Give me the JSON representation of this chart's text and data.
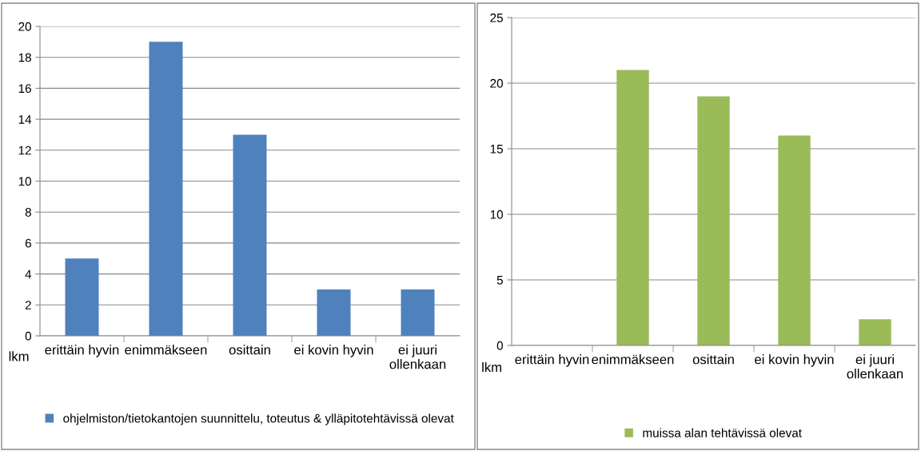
{
  "chart_data": [
    {
      "type": "bar",
      "ylabel": "lkm",
      "categories": [
        "erittäin hyvin",
        "enimmäkseen",
        "osittain",
        "ei kovin hyvin",
        "ei juuri\nollenkaan"
      ],
      "ylim": [
        0,
        20
      ],
      "yticks": [
        0,
        2,
        4,
        6,
        8,
        10,
        12,
        14,
        16,
        18,
        20
      ],
      "grid": "y",
      "legend": "bottom",
      "series": [
        {
          "name": "ohjelmiston/tietokantojen suunnittelu, toteutus & ylläpitotehtävissä olevat",
          "color": "#4f81bd",
          "values": [
            5,
            19,
            13,
            3,
            3
          ]
        }
      ]
    },
    {
      "type": "bar",
      "ylabel": "lkm",
      "categories": [
        "erittäin hyvin",
        "enimmäkseen",
        "osittain",
        "ei kovin hyvin",
        "ei juuri\nollenkaan"
      ],
      "ylim": [
        0,
        25
      ],
      "yticks": [
        0,
        5,
        10,
        15,
        20,
        25
      ],
      "grid": "y",
      "legend": "bottom",
      "series": [
        {
          "name": "muissa alan tehtävissä olevat",
          "color": "#9bbb59",
          "values": [
            0,
            21,
            19,
            16,
            2
          ]
        }
      ]
    }
  ]
}
